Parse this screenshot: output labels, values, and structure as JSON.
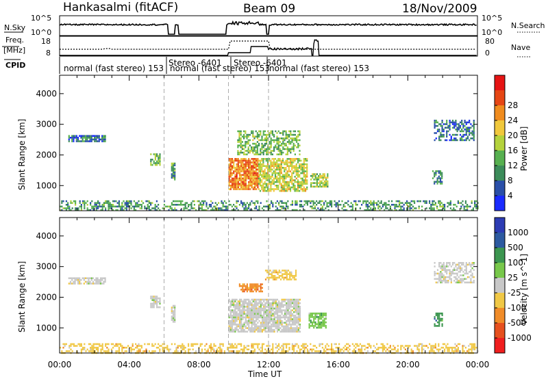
{
  "header": {
    "station": "Hankasalmi (fitACF)",
    "beam": "Beam 09",
    "date": "18/Nov/2009"
  },
  "sky_panel": {
    "left_label": "N.Sky",
    "right_label": "N.Search",
    "left_ticks": [
      "10^5",
      "10^0"
    ],
    "right_ticks": [
      "10^5",
      "10^0"
    ]
  },
  "freq_panel": {
    "left_label_1": "Freq.",
    "left_label_2": "[MHz]",
    "right_label": "Nave",
    "left_ticks": [
      "18",
      "8"
    ],
    "right_ticks": [
      "80",
      "0"
    ]
  },
  "cpid": {
    "label": "CPID",
    "segments": [
      {
        "text": "normal (fast stereo) 153",
        "start_hour": 0.0
      },
      {
        "text": "Stereo -6401",
        "start_hour": 6.9
      },
      {
        "text": "normal (fast stereo) 153",
        "start_hour": 6.0
      },
      {
        "text": "Stereo -6401",
        "start_hour": 9.5
      },
      {
        "text": "normal (fast stereo) 153",
        "start_hour": 12.1
      }
    ]
  },
  "x_axis": {
    "label": "Time UT",
    "ticks": [
      "00:00",
      "04:00",
      "08:00",
      "12:00",
      "16:00",
      "20:00",
      "00:00"
    ]
  },
  "colors": {
    "power": [
      "#1a2bff",
      "#2a4fa8",
      "#3c8c5a",
      "#57b050",
      "#b4d23c",
      "#f0c83c",
      "#f08c1e",
      "#e64614",
      "#e61414"
    ],
    "velocity": [
      "#f01e1e",
      "#e6501e",
      "#f08c28",
      "#f0c846",
      "#c8c8c8",
      "#78c84b",
      "#3c9650",
      "#2d5aa0",
      "#2d3cb4"
    ]
  },
  "chart_data": [
    {
      "type": "heatmap",
      "title": "Power",
      "ylabel": "Slant Range [km]",
      "xlabel": "",
      "xlim": [
        0,
        24
      ],
      "ylim": [
        180,
        4600
      ],
      "yticks": [
        1000,
        2000,
        3000,
        4000
      ],
      "colorbar": {
        "label": "Power [dB]",
        "min": 0,
        "max": 32,
        "ticks": [
          4,
          8,
          12,
          16,
          20,
          24,
          28
        ]
      },
      "patches": [
        {
          "t0": 0.0,
          "t1": 24.0,
          "r0": 200,
          "r1": 520,
          "v": 10,
          "density": 0.45
        },
        {
          "t0": 0.5,
          "t1": 2.6,
          "r0": 2470,
          "r1": 2650,
          "v": 7,
          "density": 0.8
        },
        {
          "t0": 5.2,
          "t1": 5.8,
          "r0": 1700,
          "r1": 2050,
          "v": 12,
          "density": 0.7
        },
        {
          "t0": 6.4,
          "t1": 6.6,
          "r0": 1200,
          "r1": 1750,
          "v": 10,
          "density": 0.8
        },
        {
          "t0": 9.7,
          "t1": 11.4,
          "r0": 900,
          "r1": 1900,
          "v": 24,
          "density": 0.85
        },
        {
          "t0": 11.4,
          "t1": 14.2,
          "r0": 800,
          "r1": 1900,
          "v": 17,
          "density": 0.75
        },
        {
          "t0": 10.2,
          "t1": 13.8,
          "r0": 2000,
          "r1": 2800,
          "v": 13,
          "density": 0.55
        },
        {
          "t0": 14.4,
          "t1": 15.4,
          "r0": 950,
          "r1": 1400,
          "v": 15,
          "density": 0.7
        },
        {
          "t0": 21.4,
          "t1": 22.0,
          "r0": 1050,
          "r1": 1500,
          "v": 9,
          "density": 0.6
        },
        {
          "t0": 21.5,
          "t1": 23.8,
          "r0": 2500,
          "r1": 3150,
          "v": 7,
          "density": 0.55
        }
      ]
    },
    {
      "type": "heatmap",
      "title": "Velocity",
      "ylabel": "Slant Range [km]",
      "xlabel": "Time UT",
      "xlim": [
        0,
        24
      ],
      "ylim": [
        180,
        4600
      ],
      "yticks": [
        1000,
        2000,
        3000,
        4000
      ],
      "colorbar": {
        "label": "Velocity [m s^-1]",
        "ticks": [
          "-1000",
          "-500",
          "-100",
          "-25",
          "25",
          "100",
          "500",
          "1000"
        ]
      },
      "patches": [
        {
          "t0": 0.0,
          "t1": 24.0,
          "r0": 200,
          "r1": 500,
          "v": 3,
          "density": 0.45
        },
        {
          "t0": 0.5,
          "t1": 2.6,
          "r0": 2470,
          "r1": 2650,
          "v": 4,
          "density": 0.8
        },
        {
          "t0": 5.2,
          "t1": 5.8,
          "r0": 1700,
          "r1": 2050,
          "v": 4,
          "density": 0.7
        },
        {
          "t0": 6.4,
          "t1": 6.6,
          "r0": 1200,
          "r1": 1750,
          "v": 4,
          "density": 0.8
        },
        {
          "t0": 9.7,
          "t1": 13.8,
          "r0": 900,
          "r1": 1950,
          "v": 4,
          "density": 0.85
        },
        {
          "t0": 10.3,
          "t1": 11.6,
          "r0": 2200,
          "r1": 2450,
          "v": 2,
          "density": 0.8
        },
        {
          "t0": 11.8,
          "t1": 13.6,
          "r0": 2600,
          "r1": 2900,
          "v": 3,
          "density": 0.6
        },
        {
          "t0": 14.3,
          "t1": 15.3,
          "r0": 1000,
          "r1": 1500,
          "v": 5,
          "density": 0.8
        },
        {
          "t0": 21.5,
          "t1": 22.0,
          "r0": 1050,
          "r1": 1500,
          "v": 6,
          "density": 0.6
        },
        {
          "t0": 21.5,
          "t1": 23.8,
          "r0": 2500,
          "r1": 3150,
          "v": 4,
          "density": 0.55
        }
      ]
    }
  ]
}
